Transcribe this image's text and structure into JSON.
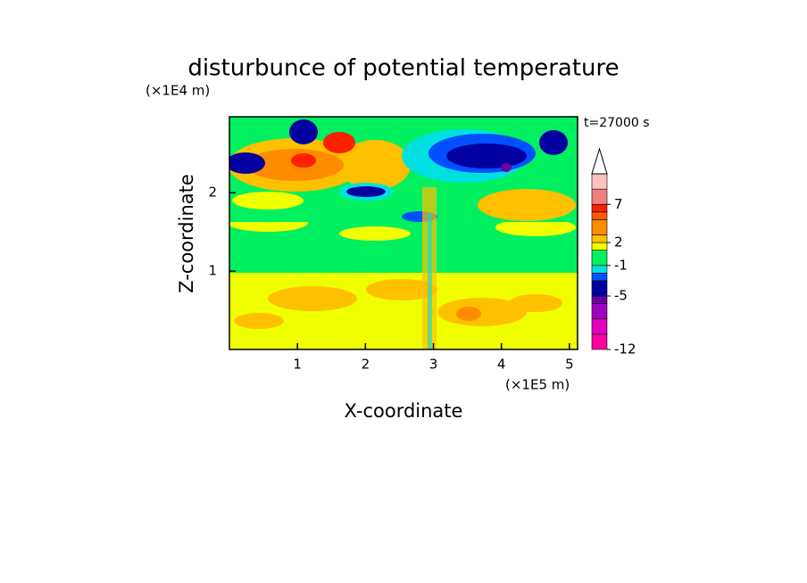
{
  "chart_data": {
    "type": "contour",
    "title": "disturbunce of potential temperature",
    "x_label": "X-coordinate",
    "y_label": "Z-coordinate",
    "x_unit": "(×1E5 m)",
    "y_unit": "(×1E4 m)",
    "annotation": "t=27000 s",
    "xlim": [
      0,
      5.12
    ],
    "xticks": [
      1,
      2,
      3,
      4,
      5
    ],
    "ylim": [
      0,
      2.97
    ],
    "yticks": [
      1,
      2
    ],
    "colorbar": {
      "levels": [
        -12,
        -10,
        -8,
        -6,
        -5,
        -3,
        -2,
        -1,
        1,
        2,
        3,
        5,
        6,
        7,
        9,
        11
      ],
      "colors": [
        "#ff00a0",
        "#e000c0",
        "#a000c0",
        "#6a00a8",
        "#0000a0",
        "#0050ff",
        "#00e0e0",
        "#00f060",
        "#f0ff00",
        "#ffc000",
        "#ff8c00",
        "#ff5a00",
        "#ff2000",
        "#f08080",
        "#ffc0c0"
      ],
      "ticks": [
        -12,
        -5,
        -1,
        2,
        7
      ],
      "extend": "max"
    }
  }
}
